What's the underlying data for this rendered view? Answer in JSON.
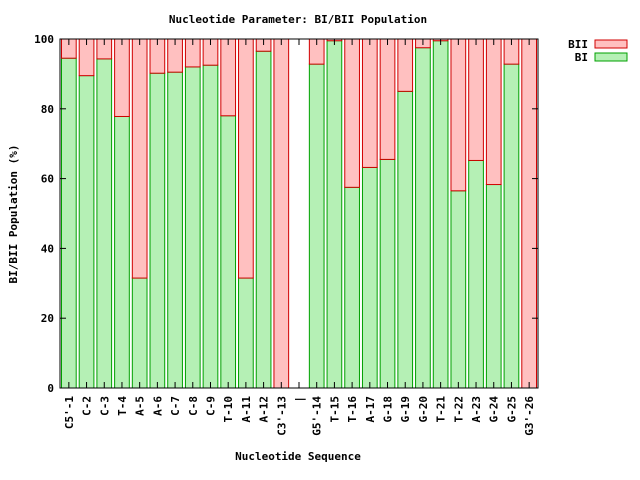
{
  "chart_data": {
    "type": "bar",
    "stacked": true,
    "title": "Nucleotide Parameter: BI/BII Population",
    "xlabel": "Nucleotide Sequence",
    "ylabel": "BI/BII Population (%)",
    "ylim": [
      0,
      100
    ],
    "y_ticks": [
      "0",
      "20",
      "40",
      "60",
      "80",
      "100"
    ],
    "y_tick_values": [
      0,
      20,
      40,
      60,
      80,
      100
    ],
    "grid": false,
    "legend_position": "top-right",
    "categories": [
      "C5'-1",
      "C-2",
      "C-3",
      "T-4",
      "A-5",
      "A-6",
      "C-7",
      "C-8",
      "C-9",
      "T-10",
      "A-11",
      "A-12",
      "C3'-13",
      "|",
      "G5'-14",
      "T-15",
      "T-16",
      "A-17",
      "G-18",
      "G-19",
      "G-20",
      "T-21",
      "T-22",
      "A-23",
      "G-24",
      "G-25",
      "G3'-26"
    ],
    "series": [
      {
        "name": "BI",
        "color": "#b5f0b5",
        "stroke": "#00a000",
        "values": [
          94.5,
          89.5,
          94.3,
          77.8,
          31.5,
          90.2,
          90.5,
          92.0,
          92.5,
          78.0,
          31.5,
          96.5,
          0,
          null,
          92.8,
          99.5,
          57.5,
          63.2,
          65.5,
          85.0,
          97.5,
          99.5,
          56.5,
          65.2,
          58.3,
          92.8,
          0
        ]
      },
      {
        "name": "BII",
        "color": "#ffc0c0",
        "stroke": "#d00000",
        "values": [
          5.5,
          10.5,
          5.7,
          22.2,
          68.5,
          9.8,
          9.5,
          8.0,
          7.5,
          22.0,
          68.5,
          3.5,
          100,
          null,
          7.2,
          0.5,
          42.5,
          36.8,
          34.5,
          15.0,
          2.5,
          0.5,
          43.5,
          34.8,
          41.7,
          7.2,
          100
        ]
      }
    ]
  }
}
